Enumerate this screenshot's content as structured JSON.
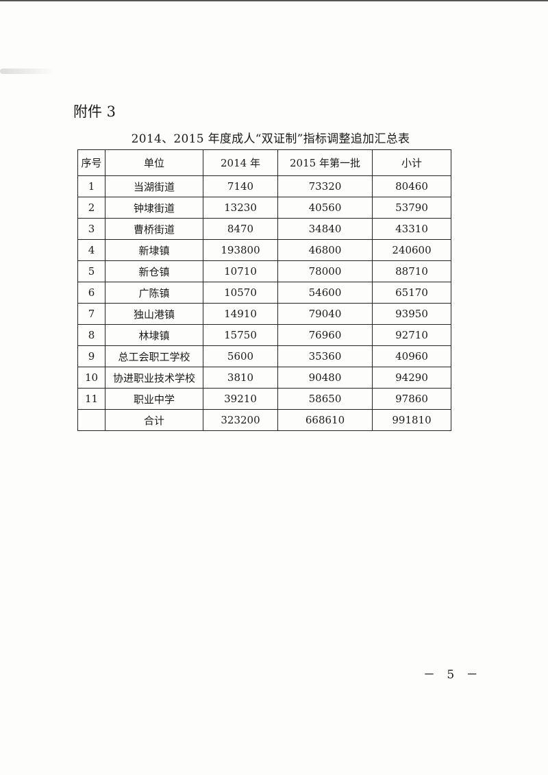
{
  "attachment_label": "附件 3",
  "title": "2014、2015 年度成人“双证制”指标调整追加汇总表",
  "table": {
    "headers": [
      "序号",
      "单位",
      "2014 年",
      "2015 年第一批",
      "小计"
    ],
    "rows": [
      [
        "1",
        "当湖街道",
        "7140",
        "73320",
        "80460"
      ],
      [
        "2",
        "钟埭街道",
        "13230",
        "40560",
        "53790"
      ],
      [
        "3",
        "曹桥街道",
        "8470",
        "34840",
        "43310"
      ],
      [
        "4",
        "新埭镇",
        "193800",
        "46800",
        "240600"
      ],
      [
        "5",
        "新仓镇",
        "10710",
        "78000",
        "88710"
      ],
      [
        "6",
        "广陈镇",
        "10570",
        "54600",
        "65170"
      ],
      [
        "7",
        "独山港镇",
        "14910",
        "79040",
        "93950"
      ],
      [
        "8",
        "林埭镇",
        "15750",
        "76960",
        "92710"
      ],
      [
        "9",
        "总工会职工学校",
        "5600",
        "35360",
        "40960"
      ],
      [
        "10",
        "协进职业技术学校",
        "3810",
        "90480",
        "94290"
      ],
      [
        "11",
        "职业中学",
        "39210",
        "58650",
        "97860"
      ],
      [
        "",
        "合计",
        "323200",
        "668610",
        "991810"
      ]
    ]
  },
  "page_number": "－ 5 －"
}
